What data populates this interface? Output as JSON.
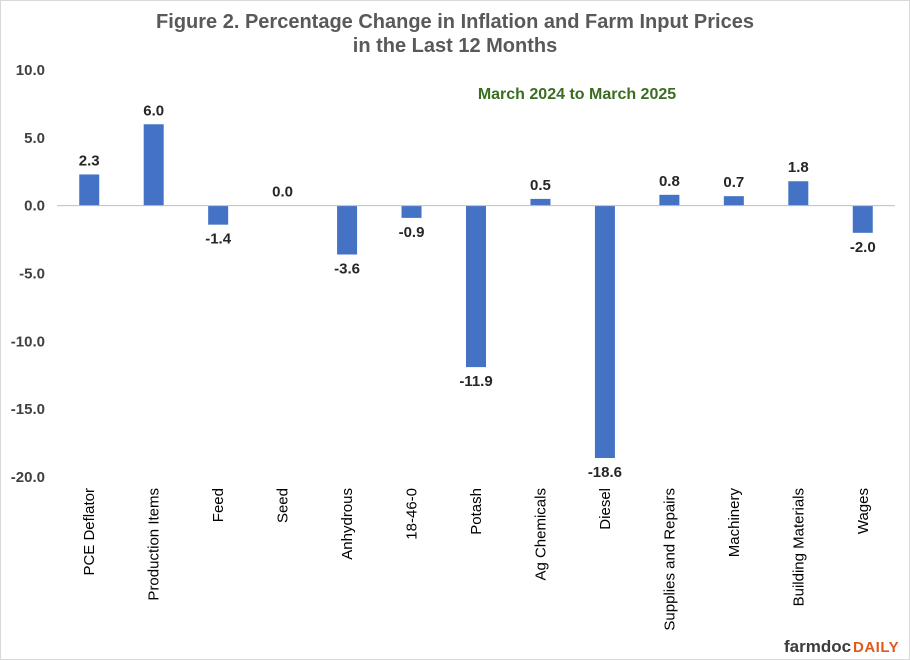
{
  "chart_data": {
    "type": "bar",
    "title_lines": [
      "Figure 2.  Percentage Change in Inflation and Farm Input Prices",
      "in the Last 12 Months"
    ],
    "subtitle": "March 2024 to March 2025",
    "categories": [
      "PCE Deflator",
      "Production Items",
      "Feed",
      "Seed",
      "Anhydrous",
      "18-46-0",
      "Potash",
      "Ag Chemicals",
      "Diesel",
      "Supplies and Repairs",
      "Machinery",
      "Building Materials",
      "Wages"
    ],
    "values": [
      2.3,
      6.0,
      -1.4,
      0.0,
      -3.6,
      -0.9,
      -11.9,
      0.5,
      -18.6,
      0.8,
      0.7,
      1.8,
      -2.0
    ],
    "value_labels": [
      "2.3",
      "6.0",
      "-1.4",
      "0.0",
      "-3.6",
      "-0.9",
      "-11.9",
      "0.5",
      "-18.6",
      "0.8",
      "0.7",
      "1.8",
      "-2.0"
    ],
    "yticks": [
      "10.0",
      "5.0",
      "0.0",
      "-5.0",
      "-10.0",
      "-15.0",
      "-20.0"
    ],
    "ylim": [
      -20,
      10
    ],
    "xlabel": "",
    "ylabel": "",
    "grid": false,
    "legend": "none",
    "bar_color": "#4472c4",
    "subtitle_color": "#3a6e1f"
  },
  "logo": {
    "part1": "farmdoc",
    "part2": "DAILY"
  }
}
